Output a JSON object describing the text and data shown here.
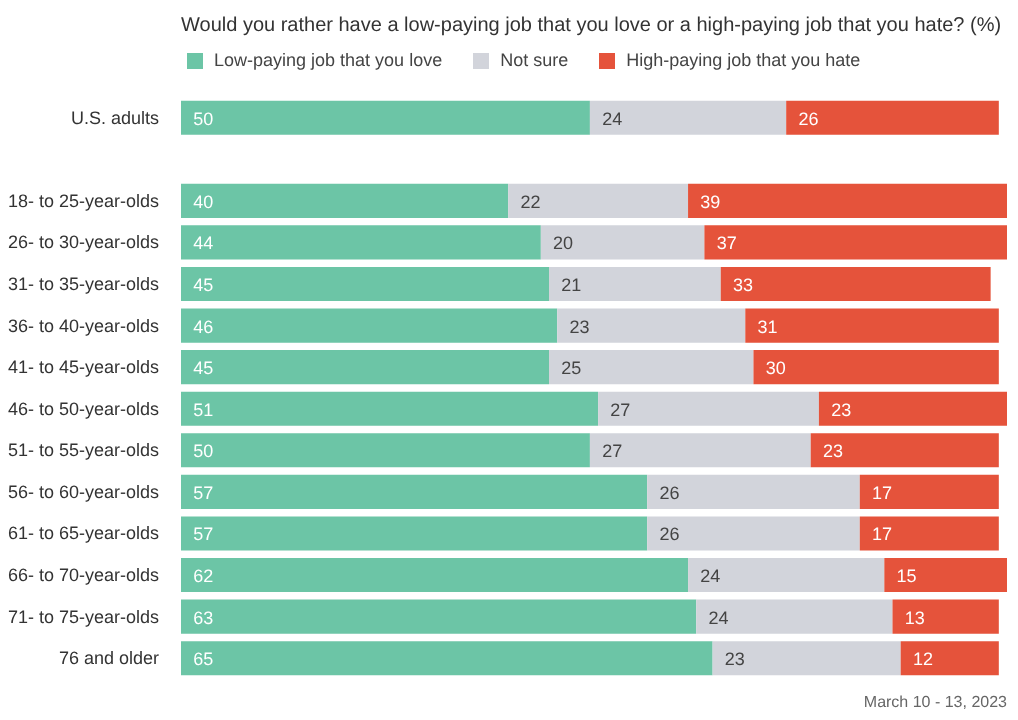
{
  "chart_data": {
    "type": "bar",
    "orientation": "horizontal",
    "stacked": true,
    "data_labels": true,
    "grid": false,
    "legend": "top left",
    "title": "Would you rather have a low-paying job that you love or a high-paying job that you hate? (%)",
    "categories": [
      "U.S. adults",
      null,
      "18- to 25-year-olds",
      "26- to 30-year-olds",
      "31- to 35-year-olds",
      "36- to 40-year-olds",
      "41- to 45-year-olds",
      "46- to 50-year-olds",
      "51- to 55-year-olds",
      "56- to 60-year-olds",
      "61- to 65-year-olds",
      "66- to 70-year-olds",
      "71- to 75-year-olds",
      "76 and older"
    ],
    "series": [
      {
        "name": "Low-paying job that you love",
        "color": "#6cc5a6",
        "values": [
          50,
          null,
          40,
          44,
          45,
          46,
          45,
          51,
          50,
          57,
          57,
          62,
          63,
          65
        ]
      },
      {
        "name": "Not sure",
        "color": "#d2d4db",
        "values": [
          24,
          null,
          22,
          20,
          21,
          23,
          25,
          27,
          27,
          26,
          26,
          24,
          24,
          23
        ]
      },
      {
        "name": "High-paying job that you hate",
        "color": "#e5533b",
        "values": [
          26,
          null,
          39,
          37,
          33,
          31,
          30,
          23,
          23,
          17,
          17,
          15,
          13,
          12
        ]
      }
    ],
    "annotations": [
      "March 10 - 13, 2023"
    ]
  }
}
